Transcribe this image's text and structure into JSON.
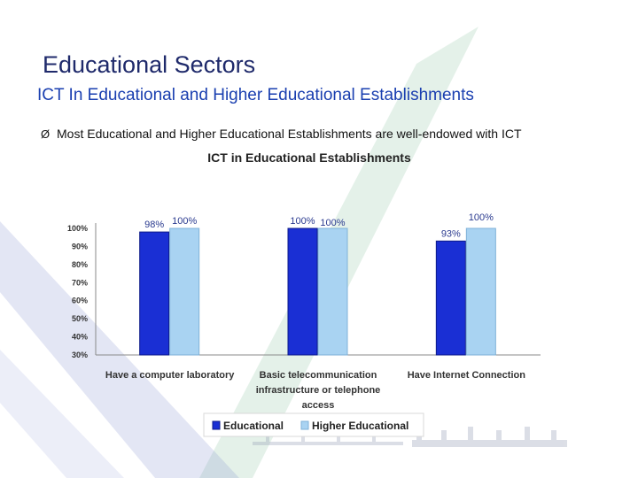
{
  "slide": {
    "title": "Educational Sectors",
    "subtitle": "ICT In Educational and Higher Educational Establishments",
    "bullet_marker": "Ø",
    "bullet": "Most Educational and Higher Educational Establishments are well-endowed with ICT"
  },
  "colors": {
    "title": "#1f2a6b",
    "subtitle": "#1a3fb0",
    "educational": "#1a2fd4",
    "higher_educational": "#a9d3f2",
    "background_chevron_green": "#5aa978",
    "background_chevron_blue": "#7f8fce"
  },
  "chart_data": {
    "type": "bar",
    "title": "ICT in Educational Establishments",
    "categories": [
      [
        "Have a computer laboratory"
      ],
      [
        "Basic telecommunication",
        "infrastructure or telephone",
        "access"
      ],
      [
        "Have Internet Connection"
      ]
    ],
    "series": [
      {
        "name": "Educational",
        "values": [
          98,
          100,
          93
        ],
        "labels": [
          "98%",
          "100%",
          "93%"
        ],
        "color": "#1a2fd4"
      },
      {
        "name": "Higher Educational",
        "values": [
          100,
          100,
          100
        ],
        "labels": [
          "100%",
          "100%",
          "100%"
        ],
        "color": "#a9d3f2"
      }
    ],
    "ylim": [
      30,
      100
    ],
    "yticks": [
      "30%",
      "40%",
      "50%",
      "60%",
      "70%",
      "80%",
      "90%",
      "100%"
    ],
    "ytick_values": [
      30,
      40,
      50,
      60,
      70,
      80,
      90,
      100
    ],
    "xlabel": "",
    "ylabel": "",
    "grid": false,
    "legend": "bottom"
  }
}
